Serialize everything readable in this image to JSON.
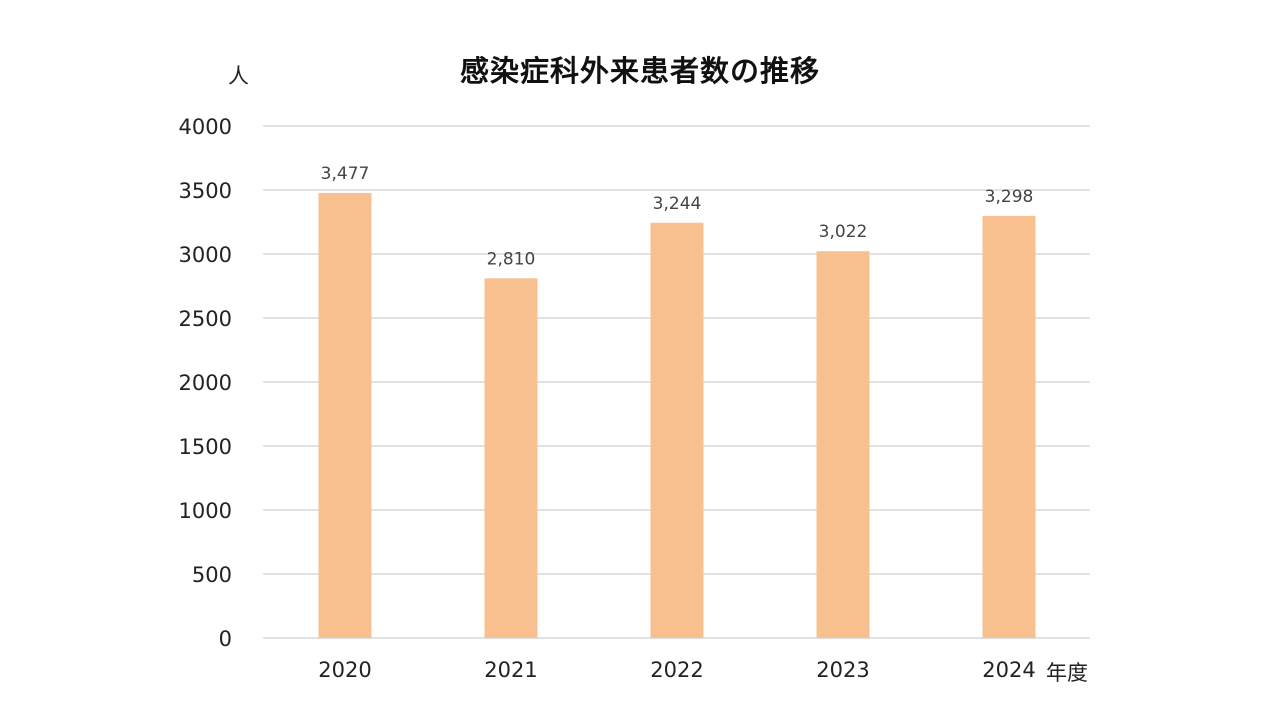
{
  "chart_data": {
    "type": "bar",
    "title": "感染症科外来患者数の推移",
    "ylabel": "人",
    "xlabel": "年度",
    "categories": [
      "2020",
      "2021",
      "2022",
      "2023",
      "2024"
    ],
    "values": [
      3477,
      2810,
      3244,
      3022,
      3298
    ],
    "data_labels": [
      "3,477",
      "2,810",
      "3,244",
      "3,022",
      "3,298"
    ],
    "y_ticks": [
      "0",
      "500",
      "1000",
      "1500",
      "2000",
      "2500",
      "3000",
      "3500",
      "4000"
    ],
    "ylim": [
      0,
      4000
    ],
    "grid": true,
    "legend": "none",
    "bar_color": "#F8C08F",
    "grid_color": "#D9D9D9"
  }
}
